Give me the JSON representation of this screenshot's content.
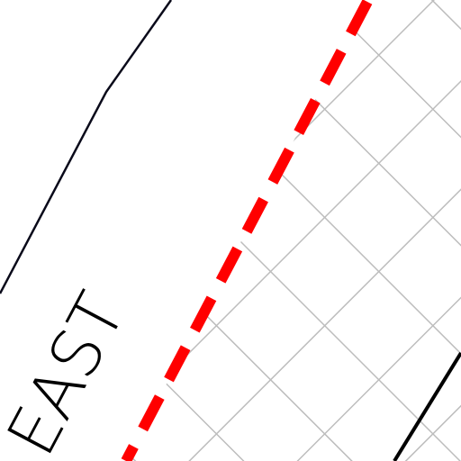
{
  "map": {
    "street_label": "EAST"
  }
}
